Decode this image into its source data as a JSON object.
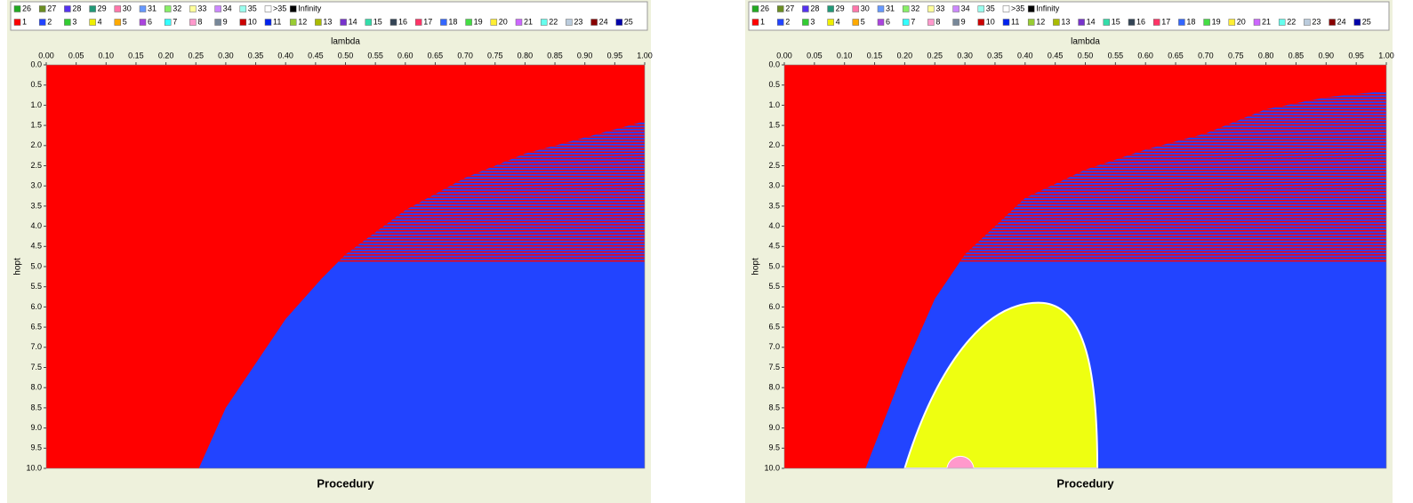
{
  "chart_data": [
    {
      "type": "region",
      "title": "Procedury",
      "x_label": "lambda",
      "y_label": "hopt",
      "xlim": [
        0,
        1
      ],
      "ylim": [
        0,
        10
      ],
      "xticks": [
        {
          "value": 0,
          "label": "0.00"
        },
        {
          "value": 0.05,
          "label": "0.05"
        },
        {
          "value": 0.1,
          "label": "0.10"
        },
        {
          "value": 0.15,
          "label": "0.15"
        },
        {
          "value": 0.2,
          "label": "0.20"
        },
        {
          "value": 0.25,
          "label": "0.25"
        },
        {
          "value": 0.3,
          "label": "0.30"
        },
        {
          "value": 0.35,
          "label": "0.35"
        },
        {
          "value": 0.4,
          "label": "0.40"
        },
        {
          "value": 0.45,
          "label": "0.45"
        },
        {
          "value": 0.5,
          "label": "0.50"
        },
        {
          "value": 0.55,
          "label": "0.55"
        },
        {
          "value": 0.6,
          "label": "0.60"
        },
        {
          "value": 0.65,
          "label": "0.65"
        },
        {
          "value": 0.7,
          "label": "0.70"
        },
        {
          "value": 0.75,
          "label": "0.75"
        },
        {
          "value": 0.8,
          "label": "0.80"
        },
        {
          "value": 0.85,
          "label": "0.85"
        },
        {
          "value": 0.9,
          "label": "0.90"
        },
        {
          "value": 0.95,
          "label": "0.95"
        },
        {
          "value": 1,
          "label": "1.00"
        }
      ],
      "yticks": [
        {
          "value": 0,
          "label": "0.0"
        },
        {
          "value": 0.5,
          "label": "0.5"
        },
        {
          "value": 1,
          "label": "1.0"
        },
        {
          "value": 1.5,
          "label": "1.5"
        },
        {
          "value": 2,
          "label": "2.0"
        },
        {
          "value": 2.5,
          "label": "2.5"
        },
        {
          "value": 3,
          "label": "3.0"
        },
        {
          "value": 3.5,
          "label": "3.5"
        },
        {
          "value": 4,
          "label": "4.0"
        },
        {
          "value": 4.5,
          "label": "4.5"
        },
        {
          "value": 5,
          "label": "5.0"
        },
        {
          "value": 5.5,
          "label": "5.5"
        },
        {
          "value": 6,
          "label": "6.0"
        },
        {
          "value": 6.5,
          "label": "6.5"
        },
        {
          "value": 7,
          "label": "7.0"
        },
        {
          "value": 7.5,
          "label": "7.5"
        },
        {
          "value": 8,
          "label": "8.0"
        },
        {
          "value": 8.5,
          "label": "8.5"
        },
        {
          "value": 9,
          "label": "9.0"
        },
        {
          "value": 9.5,
          "label": "9.5"
        },
        {
          "value": 10,
          "label": "10.0"
        }
      ],
      "legend_top": [
        {
          "name": "26",
          "color": "#22aa22"
        },
        {
          "name": "27",
          "color": "#6b8e23"
        },
        {
          "name": "28",
          "color": "#5533ee"
        },
        {
          "name": "29",
          "color": "#229977"
        },
        {
          "name": "30",
          "color": "#ff77aa"
        },
        {
          "name": "31",
          "color": "#6699ff"
        },
        {
          "name": "32",
          "color": "#88ee66"
        },
        {
          "name": "33",
          "color": "#ffff99"
        },
        {
          "name": "34",
          "color": "#cc88ff"
        },
        {
          "name": "35",
          "color": "#99ffee"
        },
        {
          "name": ">35",
          "color": "#ffffff"
        },
        {
          "name": "Infinity",
          "color": "#000000"
        }
      ],
      "series": [
        {
          "name": "1",
          "color": "#ff0000"
        },
        {
          "name": "2",
          "color": "#2244ff"
        },
        {
          "name": "3",
          "color": "#33cc33"
        },
        {
          "name": "4",
          "color": "#eeee00"
        },
        {
          "name": "5",
          "color": "#ffaa00"
        },
        {
          "name": "6",
          "color": "#aa44dd"
        },
        {
          "name": "7",
          "color": "#33ffff"
        },
        {
          "name": "8",
          "color": "#ff99cc"
        },
        {
          "name": "9",
          "color": "#778899"
        },
        {
          "name": "10",
          "color": "#cc0000"
        },
        {
          "name": "11",
          "color": "#0022ee"
        },
        {
          "name": "12",
          "color": "#99cc33"
        },
        {
          "name": "13",
          "color": "#aabb00"
        },
        {
          "name": "14",
          "color": "#7733cc"
        },
        {
          "name": "15",
          "color": "#33ddaa"
        },
        {
          "name": "16",
          "color": "#334455"
        },
        {
          "name": "17",
          "color": "#ff3366"
        },
        {
          "name": "18",
          "color": "#3366ff"
        },
        {
          "name": "19",
          "color": "#44dd44"
        },
        {
          "name": "20",
          "color": "#ffee33"
        },
        {
          "name": "21",
          "color": "#cc66ff"
        },
        {
          "name": "22",
          "color": "#66ffee"
        },
        {
          "name": "23",
          "color": "#bbccdd"
        },
        {
          "name": "24",
          "color": "#880000"
        },
        {
          "name": "25",
          "color": "#0000aa"
        }
      ]
    },
    {
      "type": "region",
      "title": "Procedury",
      "x_label": "lambda",
      "y_label": "hopt",
      "xlim": [
        0,
        1
      ],
      "ylim": [
        0,
        10
      ],
      "xticks": [
        {
          "value": 0,
          "label": "0.00"
        },
        {
          "value": 0.05,
          "label": "0.05"
        },
        {
          "value": 0.1,
          "label": "0.10"
        },
        {
          "value": 0.15,
          "label": "0.15"
        },
        {
          "value": 0.2,
          "label": "0.20"
        },
        {
          "value": 0.25,
          "label": "0.25"
        },
        {
          "value": 0.3,
          "label": "0.30"
        },
        {
          "value": 0.35,
          "label": "0.35"
        },
        {
          "value": 0.4,
          "label": "0.40"
        },
        {
          "value": 0.45,
          "label": "0.45"
        },
        {
          "value": 0.5,
          "label": "0.50"
        },
        {
          "value": 0.55,
          "label": "0.55"
        },
        {
          "value": 0.6,
          "label": "0.60"
        },
        {
          "value": 0.65,
          "label": "0.65"
        },
        {
          "value": 0.7,
          "label": "0.70"
        },
        {
          "value": 0.75,
          "label": "0.75"
        },
        {
          "value": 0.8,
          "label": "0.80"
        },
        {
          "value": 0.85,
          "label": "0.85"
        },
        {
          "value": 0.9,
          "label": "0.90"
        },
        {
          "value": 0.95,
          "label": "0.95"
        },
        {
          "value": 1,
          "label": "1.00"
        }
      ],
      "yticks": [
        {
          "value": 0,
          "label": "0.0"
        },
        {
          "value": 0.5,
          "label": "0.5"
        },
        {
          "value": 1,
          "label": "1.0"
        },
        {
          "value": 1.5,
          "label": "1.5"
        },
        {
          "value": 2,
          "label": "2.0"
        },
        {
          "value": 2.5,
          "label": "2.5"
        },
        {
          "value": 3,
          "label": "3.0"
        },
        {
          "value": 3.5,
          "label": "3.5"
        },
        {
          "value": 4,
          "label": "4.0"
        },
        {
          "value": 4.5,
          "label": "4.5"
        },
        {
          "value": 5,
          "label": "5.0"
        },
        {
          "value": 5.5,
          "label": "5.5"
        },
        {
          "value": 6,
          "label": "6.0"
        },
        {
          "value": 6.5,
          "label": "6.5"
        },
        {
          "value": 7,
          "label": "7.0"
        },
        {
          "value": 7.5,
          "label": "7.5"
        },
        {
          "value": 8,
          "label": "8.0"
        },
        {
          "value": 8.5,
          "label": "8.5"
        },
        {
          "value": 9,
          "label": "9.0"
        },
        {
          "value": 9.5,
          "label": "9.5"
        },
        {
          "value": 10,
          "label": "10.0"
        }
      ],
      "legend_top": [
        {
          "name": "26",
          "color": "#22aa22"
        },
        {
          "name": "27",
          "color": "#6b8e23"
        },
        {
          "name": "28",
          "color": "#5533ee"
        },
        {
          "name": "29",
          "color": "#229977"
        },
        {
          "name": "30",
          "color": "#ff77aa"
        },
        {
          "name": "31",
          "color": "#6699ff"
        },
        {
          "name": "32",
          "color": "#88ee66"
        },
        {
          "name": "33",
          "color": "#ffff99"
        },
        {
          "name": "34",
          "color": "#cc88ff"
        },
        {
          "name": "35",
          "color": "#99ffee"
        },
        {
          "name": ">35",
          "color": "#ffffff"
        },
        {
          "name": "Infinity",
          "color": "#000000"
        }
      ],
      "series": [
        {
          "name": "1",
          "color": "#ff0000"
        },
        {
          "name": "2",
          "color": "#2244ff"
        },
        {
          "name": "3",
          "color": "#33cc33"
        },
        {
          "name": "4",
          "color": "#eeee00"
        },
        {
          "name": "5",
          "color": "#ffaa00"
        },
        {
          "name": "6",
          "color": "#aa44dd"
        },
        {
          "name": "7",
          "color": "#33ffff"
        },
        {
          "name": "8",
          "color": "#ff99cc"
        },
        {
          "name": "9",
          "color": "#778899"
        },
        {
          "name": "10",
          "color": "#cc0000"
        },
        {
          "name": "11",
          "color": "#0022ee"
        },
        {
          "name": "12",
          "color": "#99cc33"
        },
        {
          "name": "13",
          "color": "#aabb00"
        },
        {
          "name": "14",
          "color": "#7733cc"
        },
        {
          "name": "15",
          "color": "#33ddaa"
        },
        {
          "name": "16",
          "color": "#334455"
        },
        {
          "name": "17",
          "color": "#ff3366"
        },
        {
          "name": "18",
          "color": "#3366ff"
        },
        {
          "name": "19",
          "color": "#44dd44"
        },
        {
          "name": "20",
          "color": "#ffee33"
        },
        {
          "name": "21",
          "color": "#cc66ff"
        },
        {
          "name": "22",
          "color": "#66ffee"
        },
        {
          "name": "23",
          "color": "#bbccdd"
        },
        {
          "name": "24",
          "color": "#880000"
        },
        {
          "name": "25",
          "color": "#0000aa"
        }
      ]
    }
  ]
}
